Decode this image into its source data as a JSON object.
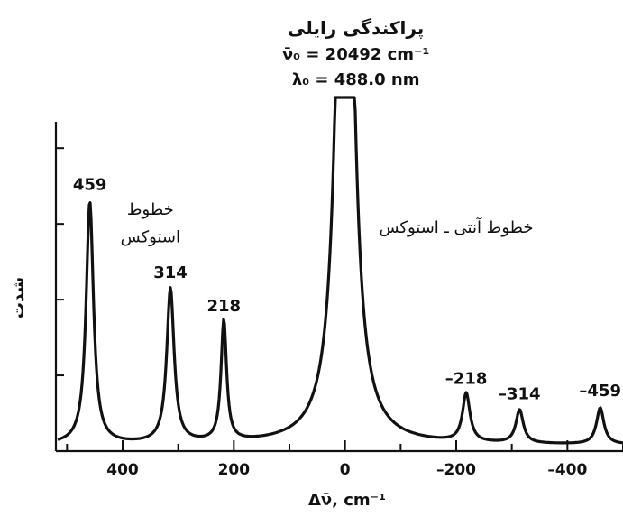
{
  "chart_data": {
    "type": "line",
    "title_lines": [
      "پراکندگی رایلی",
      "ν̄₀ = 20492 cm⁻¹",
      "λ₀ = 488.0 nm"
    ],
    "xlabel": "Δν̄, cm⁻¹",
    "ylabel": "شدت",
    "xlim": [
      520,
      -500
    ],
    "ylim": [
      0,
      100
    ],
    "x_ticks": [
      400,
      200,
      0,
      -200,
      -400
    ],
    "x_tick_labels": [
      "400",
      "200",
      "0",
      "–200",
      "–400"
    ],
    "y_ticks": [
      25,
      50,
      75,
      100
    ],
    "y_tick_labels": [],
    "annotations": [
      {
        "text": "خطوط",
        "x": 350,
        "y": 78
      },
      {
        "text": "استوکس",
        "x": 350,
        "y": 69
      },
      {
        "text": "خطوط آنتی ـ استوکس",
        "x": -200,
        "y": 72
      }
    ],
    "series": [
      {
        "line_color": "#111111",
        "baseline": 2,
        "peaks": [
          {
            "x": 459,
            "height": 80,
            "width": 8,
            "label": "459"
          },
          {
            "x": 314,
            "height": 51,
            "width": 8,
            "label": "314"
          },
          {
            "x": 218,
            "height": 40,
            "width": 6,
            "label": "218"
          },
          {
            "x": 0,
            "height": 300,
            "width": 14,
            "label": ""
          },
          {
            "x": -218,
            "height": 16,
            "width": 8,
            "label": "–218"
          },
          {
            "x": -314,
            "height": 11,
            "width": 8,
            "label": "–314"
          },
          {
            "x": -459,
            "height": 12,
            "width": 8,
            "label": "–459"
          }
        ]
      }
    ]
  }
}
